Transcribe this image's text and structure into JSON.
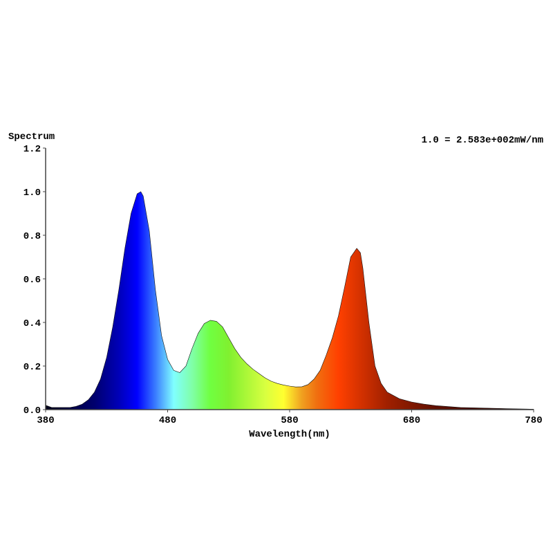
{
  "chart_data": {
    "type": "area",
    "title": "",
    "ylabel": "Spectrum",
    "xlabel": "Wavelength(nm)",
    "annotation": "1.0 = 2.583e+002mW/nm",
    "xlim": [
      380,
      780
    ],
    "ylim": [
      0,
      1.2
    ],
    "xticks": [
      "380",
      "480",
      "580",
      "680",
      "780"
    ],
    "yticks": [
      "0.0",
      "0.2",
      "0.4",
      "0.6",
      "0.8",
      "1.0",
      "1.2"
    ],
    "grid": false,
    "fill": "spectral color gradient by wavelength",
    "x": [
      380,
      385,
      390,
      395,
      400,
      405,
      410,
      415,
      420,
      425,
      430,
      435,
      440,
      445,
      450,
      455,
      458,
      460,
      465,
      470,
      475,
      480,
      485,
      490,
      495,
      500,
      505,
      510,
      515,
      520,
      525,
      530,
      535,
      540,
      545,
      550,
      555,
      560,
      565,
      570,
      575,
      580,
      585,
      590,
      595,
      600,
      605,
      610,
      615,
      620,
      625,
      630,
      635,
      638,
      640,
      645,
      650,
      655,
      660,
      670,
      680,
      690,
      700,
      720,
      740,
      760,
      780
    ],
    "y": [
      0.02,
      0.01,
      0.01,
      0.01,
      0.01,
      0.015,
      0.025,
      0.045,
      0.08,
      0.14,
      0.24,
      0.38,
      0.55,
      0.74,
      0.9,
      0.99,
      1.0,
      0.98,
      0.82,
      0.55,
      0.34,
      0.23,
      0.18,
      0.17,
      0.2,
      0.28,
      0.35,
      0.395,
      0.41,
      0.405,
      0.38,
      0.33,
      0.28,
      0.24,
      0.21,
      0.185,
      0.165,
      0.145,
      0.13,
      0.12,
      0.113,
      0.108,
      0.104,
      0.105,
      0.115,
      0.14,
      0.18,
      0.25,
      0.33,
      0.43,
      0.56,
      0.7,
      0.74,
      0.72,
      0.65,
      0.4,
      0.2,
      0.12,
      0.08,
      0.05,
      0.035,
      0.025,
      0.018,
      0.01,
      0.007,
      0.004,
      0.002
    ]
  }
}
